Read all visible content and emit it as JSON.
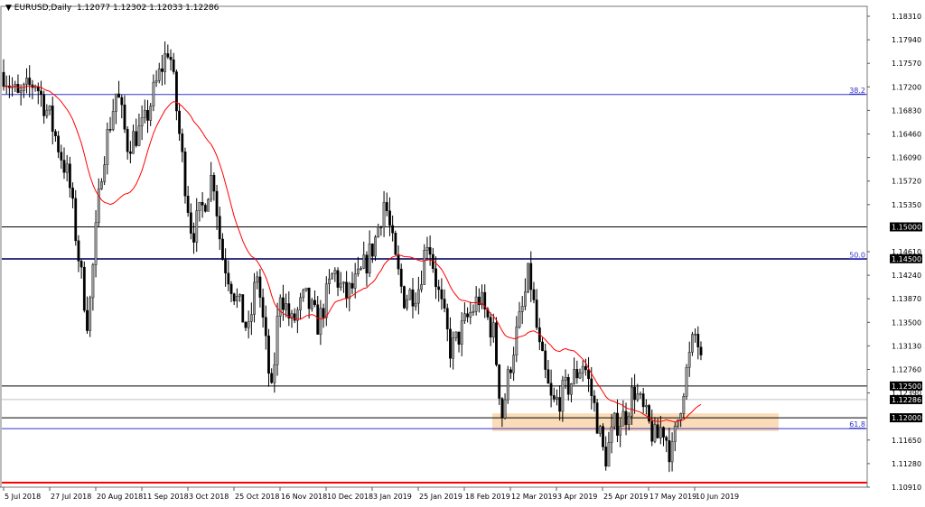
{
  "header": {
    "symbol": "EURUSD,Daily",
    "ohlc": "1.12077 1.12302 1.12033 1.12286"
  },
  "chart_data": {
    "type": "candlestick",
    "title": "EURUSD,Daily",
    "ylim": [
      1.1091,
      1.1831
    ],
    "y_ticks": [
      "1.18310",
      "1.17940",
      "1.17570",
      "1.17200",
      "1.16830",
      "1.16460",
      "1.16090",
      "1.15720",
      "1.15350",
      "1.14610",
      "1.14240",
      "1.13870",
      "1.13500",
      "1.13130",
      "1.12760",
      "1.12390",
      "1.11650",
      "1.11280",
      "1.10910"
    ],
    "x_ticks": [
      {
        "label": "5 Jul 2018",
        "date": "2018-07-05"
      },
      {
        "label": "27 Jul 2018",
        "date": "2018-07-27"
      },
      {
        "label": "20 Aug 2018",
        "date": "2018-08-20"
      },
      {
        "label": "11 Sep 2018",
        "date": "2018-09-11"
      },
      {
        "label": "3 Oct 2018",
        "date": "2018-10-03"
      },
      {
        "label": "25 Oct 2018",
        "date": "2018-10-25"
      },
      {
        "label": "16 Nov 2018",
        "date": "2018-11-16"
      },
      {
        "label": "10 Dec 2018",
        "date": "2018-12-10"
      },
      {
        "label": "3 Jan 2019",
        "date": "2019-01-03"
      },
      {
        "label": "25 Jan 2019",
        "date": "2019-01-25"
      },
      {
        "label": "18 Feb 2019",
        "date": "2019-02-18"
      },
      {
        "label": "12 Mar 2019",
        "date": "2019-03-12"
      },
      {
        "label": "3 Apr 2019",
        "date": "2019-04-03"
      },
      {
        "label": "25 Apr 2019",
        "date": "2019-04-25"
      },
      {
        "label": "17 May 2019",
        "date": "2019-05-17"
      },
      {
        "label": "10 Jun 2019",
        "date": "2019-06-10"
      }
    ],
    "approximate_path": [
      [
        "2018-07-05",
        1.1743
      ],
      [
        "2018-07-12",
        1.1701
      ],
      [
        "2018-07-20",
        1.1729
      ],
      [
        "2018-07-27",
        1.1672
      ],
      [
        "2018-08-06",
        1.1573
      ],
      [
        "2018-08-12",
        1.1431
      ],
      [
        "2018-08-16",
        1.1346
      ],
      [
        "2018-08-20",
        1.1488
      ],
      [
        "2018-08-23",
        1.1601
      ],
      [
        "2018-08-30",
        1.1715
      ],
      [
        "2018-09-04",
        1.163
      ],
      [
        "2018-09-12",
        1.1658
      ],
      [
        "2018-09-17",
        1.1715
      ],
      [
        "2018-09-24",
        1.1786
      ],
      [
        "2018-09-26",
        1.1729
      ],
      [
        "2018-10-01",
        1.1587
      ],
      [
        "2018-10-05",
        1.1488
      ],
      [
        "2018-10-10",
        1.153
      ],
      [
        "2018-10-15",
        1.1587
      ],
      [
        "2018-10-19",
        1.1459
      ],
      [
        "2018-10-26",
        1.1389
      ],
      [
        "2018-11-01",
        1.1332
      ],
      [
        "2018-11-05",
        1.1431
      ],
      [
        "2018-11-12",
        1.1233
      ],
      [
        "2018-11-16",
        1.1403
      ],
      [
        "2018-11-22",
        1.1346
      ],
      [
        "2018-11-29",
        1.1389
      ],
      [
        "2018-12-06",
        1.1346
      ],
      [
        "2018-12-14",
        1.1431
      ],
      [
        "2018-12-20",
        1.1389
      ],
      [
        "2018-12-27",
        1.1417
      ],
      [
        "2019-01-04",
        1.1474
      ],
      [
        "2019-01-09",
        1.1545
      ],
      [
        "2019-01-14",
        1.1445
      ],
      [
        "2019-01-18",
        1.1389
      ],
      [
        "2019-01-25",
        1.1403
      ],
      [
        "2019-01-30",
        1.1488
      ],
      [
        "2019-02-04",
        1.1403
      ],
      [
        "2019-02-11",
        1.1304
      ],
      [
        "2019-02-18",
        1.1346
      ],
      [
        "2019-02-25",
        1.1389
      ],
      [
        "2019-03-04",
        1.1332
      ],
      [
        "2019-03-08",
        1.1204
      ],
      [
        "2019-03-13",
        1.1304
      ],
      [
        "2019-03-18",
        1.1374
      ],
      [
        "2019-03-21",
        1.1431
      ],
      [
        "2019-03-26",
        1.1304
      ],
      [
        "2019-04-01",
        1.1218
      ],
      [
        "2019-04-05",
        1.1233
      ],
      [
        "2019-04-11",
        1.1261
      ],
      [
        "2019-04-16",
        1.1289
      ],
      [
        "2019-04-22",
        1.1204
      ],
      [
        "2019-04-26",
        1.1133
      ],
      [
        "2019-05-01",
        1.119
      ],
      [
        "2019-05-06",
        1.1204
      ],
      [
        "2019-05-10",
        1.1247
      ],
      [
        "2019-05-15",
        1.1204
      ],
      [
        "2019-05-21",
        1.1162
      ],
      [
        "2019-05-24",
        1.119
      ],
      [
        "2019-05-29",
        1.114
      ],
      [
        "2019-06-04",
        1.1247
      ],
      [
        "2019-06-10",
        1.1332
      ],
      [
        "2019-06-13",
        1.1304
      ],
      [
        "2019-06-14",
        1.1229
      ]
    ],
    "moving_average_color": "#ff0000",
    "levels": [
      {
        "price": 1.15,
        "label": "1.15000",
        "color": "#000000"
      },
      {
        "price": 1.145,
        "label": "1.14500",
        "color": "#000000"
      },
      {
        "price": 1.125,
        "label": "1.12500",
        "color": "#000000"
      },
      {
        "price": 1.12,
        "label": "1.12000",
        "color": "#000000"
      },
      {
        "price": 1.12286,
        "label": "1.12286",
        "color": "#c0c0c0"
      }
    ],
    "fibonacci": [
      {
        "label": "38.2",
        "price": 1.1708
      },
      {
        "label": "50.0",
        "price": 1.1449
      },
      {
        "label": "61.8",
        "price": 1.1183
      }
    ],
    "fib_color": "#3333cc",
    "support_zone": {
      "from": 1.1179,
      "to": 1.1207,
      "color": "#fbdcb8"
    },
    "red_line": {
      "price": 1.1098,
      "color": "#ff0000"
    }
  }
}
